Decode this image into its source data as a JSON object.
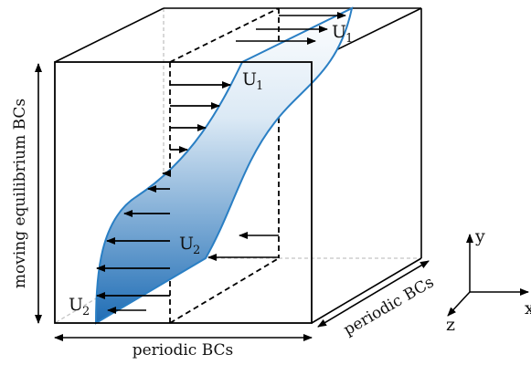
{
  "labels": {
    "vertical_bc": "moving equilibrium BCs",
    "bottom_bc": "periodic BCs",
    "depth_bc": "periodic BCs"
  },
  "velocity_labels": [
    {
      "symbol": "U",
      "subscript": "1"
    },
    {
      "symbol": "U",
      "subscript": "1"
    },
    {
      "symbol": "U",
      "subscript": "2"
    },
    {
      "symbol": "U",
      "subscript": "2"
    }
  ],
  "axes": {
    "x": "x",
    "y": "y",
    "z": "z"
  },
  "colors": {
    "sheet_top": "#ffffff",
    "sheet_bottom": "#1f6db5",
    "sheet_outline": "#2a7fc4",
    "lines": "#000000",
    "hidden_lines": "#bdbdbd"
  }
}
